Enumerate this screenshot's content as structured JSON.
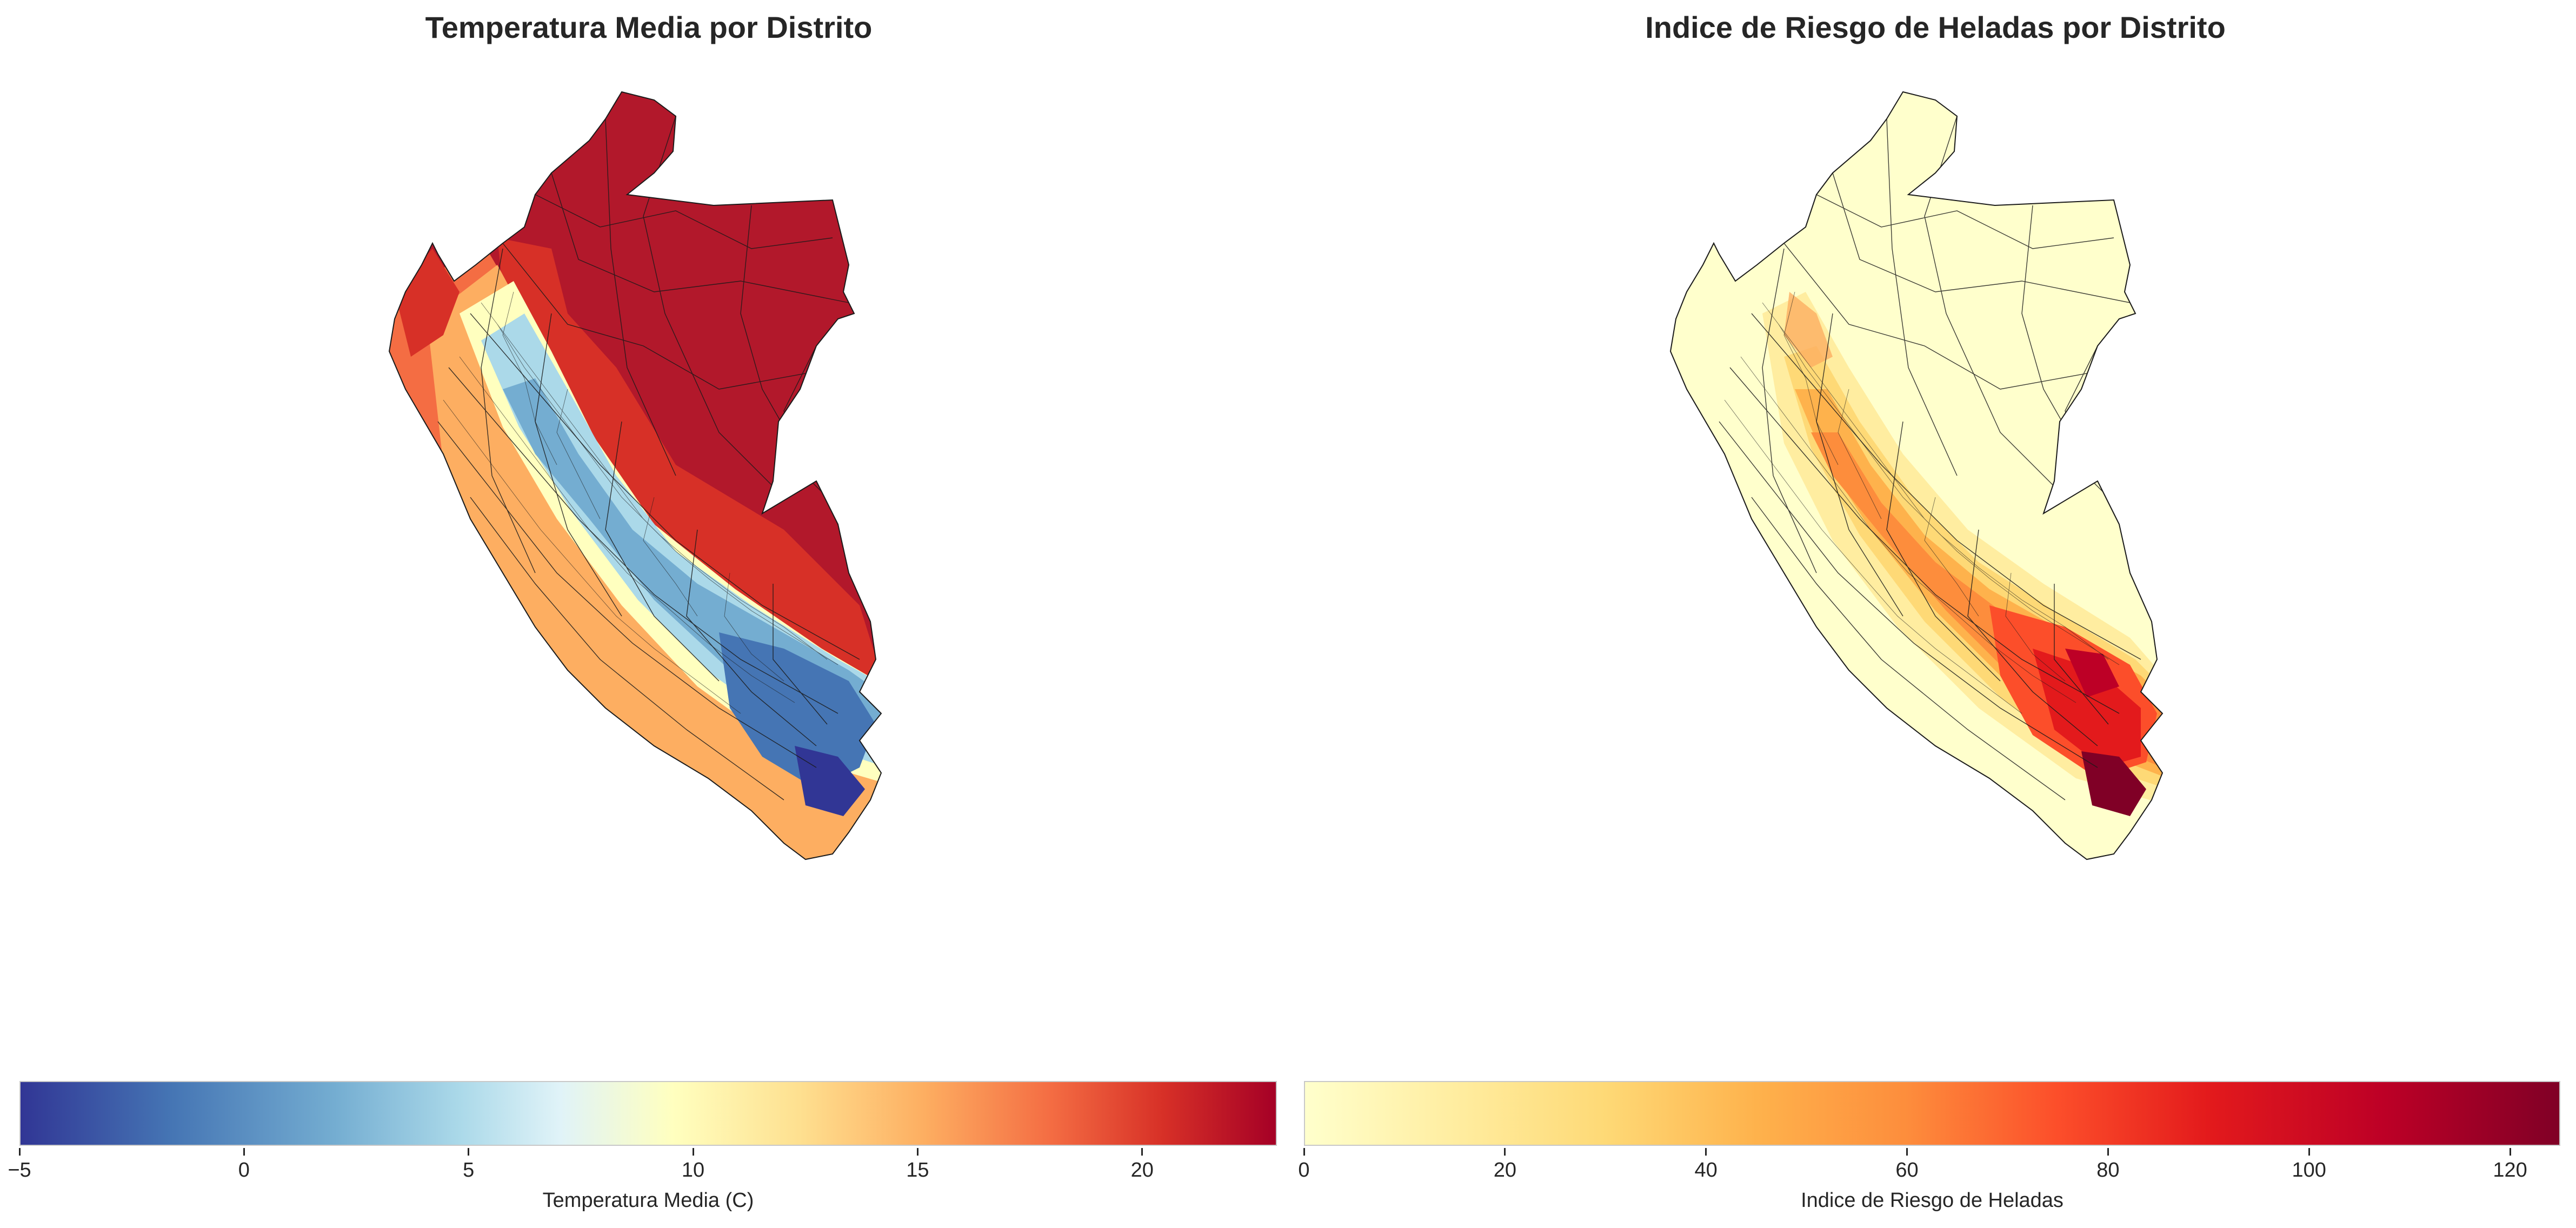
{
  "maps": [
    {
      "title": "Temperatura Media por Distrito",
      "colorbar": {
        "label": "Temperatura Media (C)",
        "range": [
          -5,
          23
        ],
        "ticks": [
          -5,
          0,
          5,
          10,
          15,
          20
        ],
        "colormap": "RdYlBu_r",
        "colors": [
          "#313695",
          "#4575b4",
          "#74add1",
          "#abd9e9",
          "#e0f3f8",
          "#ffffbf",
          "#fee090",
          "#fdae61",
          "#f46d43",
          "#d73027",
          "#a50026"
        ]
      }
    },
    {
      "title": "Indice de Riesgo de Heladas por Distrito",
      "colorbar": {
        "label": "Indice de Riesgo de Heladas",
        "range": [
          0,
          125
        ],
        "ticks": [
          0,
          20,
          40,
          60,
          80,
          100,
          120
        ],
        "colormap": "YlOrRd",
        "colors": [
          "#ffffcc",
          "#ffeda0",
          "#fed976",
          "#feb24c",
          "#fd8d3c",
          "#fc4e2a",
          "#e31a1c",
          "#bd0026",
          "#800026"
        ]
      }
    }
  ]
}
